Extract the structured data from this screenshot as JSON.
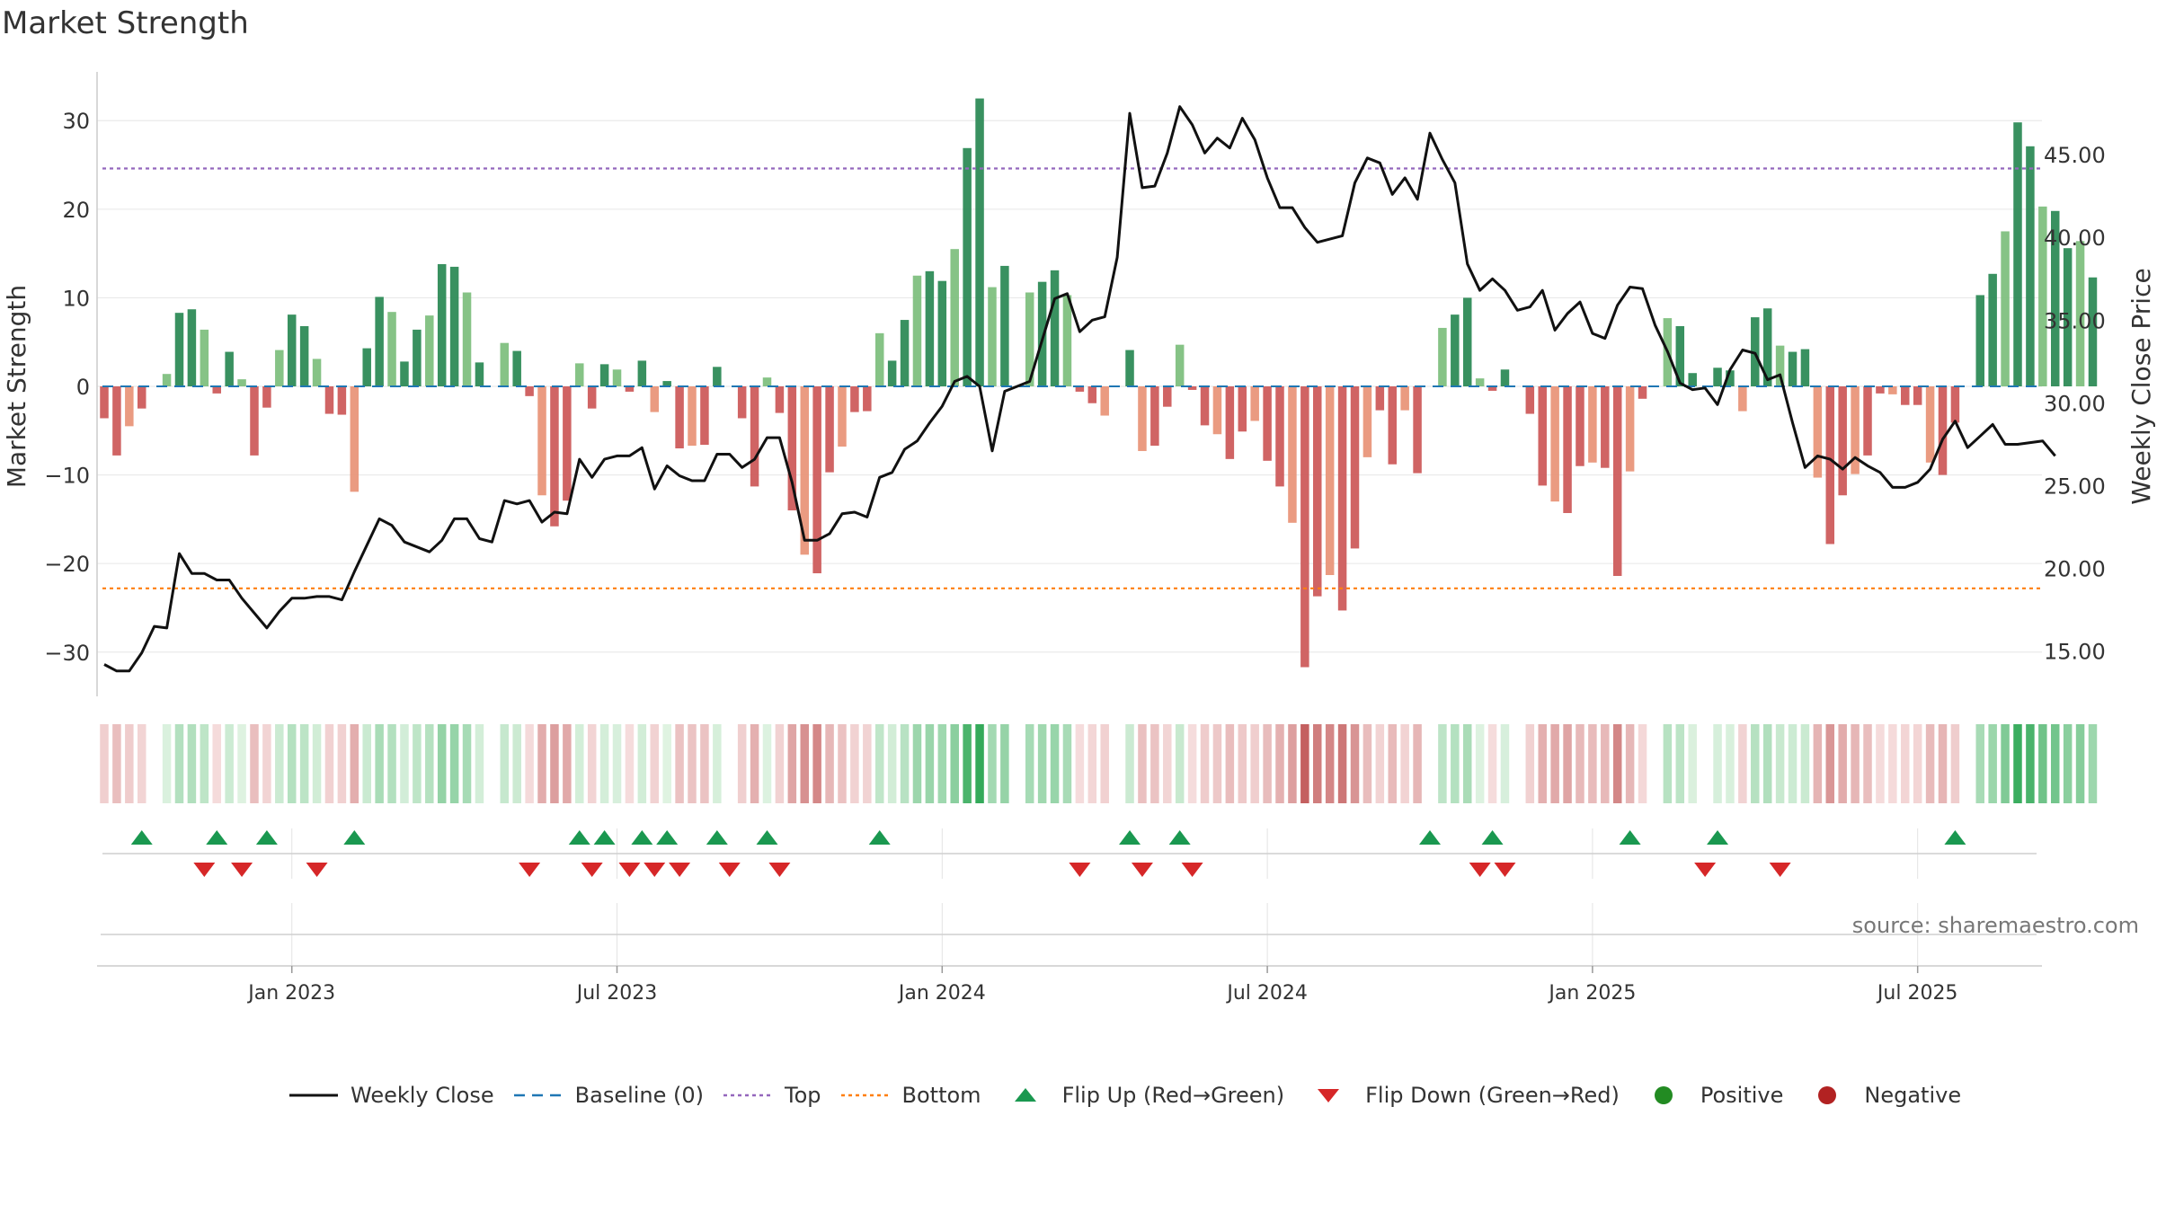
{
  "title": "Market Strength",
  "source": "source: sharemaestro.com",
  "colors": {
    "pos_strong": "#2e8b57",
    "pos_light": "#80c080",
    "neg_strong": "#cd5c5c",
    "neg_light": "#e9967a",
    "close_line": "#111111",
    "baseline": "#1f77b4",
    "top_line": "#9467bd",
    "bottom_line": "#ff7f0e",
    "flip_up": "#1a9850",
    "flip_down": "#d62728",
    "positive": "#228b22",
    "negative": "#b22222"
  },
  "legend": [
    {
      "kind": "line-solid",
      "label": "Weekly Close"
    },
    {
      "kind": "line-dash",
      "label": "Baseline (0)"
    },
    {
      "kind": "line-dot-top",
      "label": "Top"
    },
    {
      "kind": "line-dot-bottom",
      "label": "Bottom"
    },
    {
      "kind": "tri-up",
      "label": "Flip Up (Red→Green)"
    },
    {
      "kind": "tri-down",
      "label": "Flip Down (Green→Red)"
    },
    {
      "kind": "dot-pos",
      "label": "Positive"
    },
    {
      "kind": "dot-neg",
      "label": "Negative"
    }
  ],
  "chart_data": {
    "type": "bar",
    "ylabel": "Market Strength",
    "y2label": "Weekly Close Price",
    "ylim": [
      -35.5,
      35.5
    ],
    "y2lim": [
      12.0,
      50.0
    ],
    "yticks": [
      30,
      20,
      10,
      0,
      -10,
      -20,
      -30
    ],
    "ytick_labels": [
      "30",
      "20",
      "10",
      "0",
      "−10",
      "−20",
      "−30"
    ],
    "y2ticks": [
      45,
      40,
      35,
      30,
      25,
      20,
      15
    ],
    "y2tick_labels": [
      "45.00",
      "40.00",
      "35.00",
      "30.00",
      "25.00",
      "20.00",
      "15.00"
    ],
    "x_tick_labels": [
      "Jan 2023",
      "Jul 2023",
      "Jan 2024",
      "Jul 2024",
      "Jan 2025",
      "Jul 2025"
    ],
    "x_tick_index": [
      15,
      41,
      67,
      93,
      119,
      145
    ],
    "top_level": 24.6,
    "bottom_level": -22.8,
    "grid": true,
    "legend_position": "bottom",
    "strength": [
      -3.6,
      -7.8,
      -4.5,
      -2.5,
      0,
      1.4,
      8.3,
      8.7,
      6.4,
      -0.8,
      3.9,
      0.8,
      -7.8,
      -2.4,
      4.1,
      8.1,
      6.8,
      3.1,
      -3.1,
      -3.2,
      -11.9,
      4.3,
      10.1,
      8.4,
      2.8,
      6.4,
      8.0,
      13.8,
      13.5,
      10.6,
      2.7,
      0,
      4.9,
      4.0,
      -1.1,
      -12.3,
      -15.8,
      -12.9,
      2.6,
      -2.5,
      2.5,
      1.9,
      -0.6,
      2.9,
      -2.9,
      0.6,
      -7.0,
      -6.7,
      -6.6,
      2.2,
      0,
      -3.6,
      -11.3,
      1.0,
      -3.0,
      -14.0,
      -19.0,
      -21.1,
      -9.7,
      -6.8,
      -2.9,
      -2.8,
      6.0,
      2.9,
      7.5,
      12.5,
      13.0,
      11.9,
      15.5,
      26.9,
      32.5,
      11.2,
      13.6,
      0,
      10.6,
      11.8,
      13.1,
      10.3,
      -0.6,
      -1.9,
      -3.3,
      0,
      4.1,
      -7.3,
      -6.7,
      -2.3,
      4.7,
      -0.4,
      -4.4,
      -5.4,
      -8.2,
      -5.1,
      -3.9,
      -8.4,
      -11.3,
      -15.4,
      -31.7,
      -23.7,
      -21.3,
      -25.3,
      -18.3,
      -8.0,
      -2.7,
      -8.8,
      -2.7,
      -9.8,
      0,
      6.6,
      8.1,
      10.0,
      0.9,
      -0.5,
      1.9,
      0,
      -3.1,
      -11.2,
      -13.0,
      -14.3,
      -9.0,
      -8.6,
      -9.2,
      -21.4,
      -9.6,
      -1.4,
      0,
      7.7,
      6.8,
      1.5,
      0,
      2.1,
      1.8,
      -2.8,
      7.8,
      8.8,
      4.6,
      3.9,
      4.2,
      -10.3,
      -17.8,
      -12.3,
      -9.9,
      -7.8,
      -0.8,
      -0.9,
      -2.1,
      -2.1,
      -8.6,
      -10.0,
      -4.1,
      0,
      10.3,
      12.7,
      17.5,
      29.8,
      27.1,
      20.3,
      19.8,
      15.6,
      16.4,
      12.3
    ],
    "close": [
      14.2,
      13.8,
      13.8,
      14.9,
      16.5,
      16.4,
      20.9,
      19.7,
      19.7,
      19.3,
      19.3,
      18.2,
      17.3,
      16.4,
      17.4,
      18.2,
      18.2,
      18.3,
      18.3,
      18.1,
      19.8,
      21.4,
      23.0,
      22.6,
      21.6,
      21.3,
      21.0,
      21.7,
      23.0,
      23.0,
      21.8,
      21.6,
      24.1,
      23.9,
      24.1,
      22.8,
      23.4,
      23.3,
      26.6,
      25.5,
      26.6,
      26.8,
      26.8,
      27.3,
      24.8,
      26.2,
      25.6,
      25.3,
      25.3,
      26.9,
      26.9,
      26.1,
      26.6,
      27.9,
      27.9,
      25.2,
      21.7,
      21.7,
      22.1,
      23.3,
      23.4,
      23.1,
      25.5,
      25.8,
      27.2,
      27.7,
      28.8,
      29.8,
      31.3,
      31.6,
      31.0,
      27.1,
      30.7,
      31.0,
      31.3,
      33.8,
      36.3,
      36.6,
      34.3,
      35.0,
      35.2,
      38.8,
      47.5,
      43.0,
      43.1,
      45.1,
      47.9,
      46.8,
      45.1,
      46.0,
      45.4,
      47.2,
      45.9,
      43.6,
      41.8,
      41.8,
      40.6,
      39.7,
      39.9,
      40.1,
      43.3,
      44.8,
      44.5,
      42.6,
      43.6,
      42.3,
      46.3,
      44.7,
      43.3,
      38.4,
      36.8,
      37.5,
      36.8,
      35.6,
      35.8,
      36.8,
      34.4,
      35.4,
      36.1,
      34.2,
      33.9,
      35.9,
      37.0,
      36.9,
      34.7,
      33.1,
      31.2,
      30.8,
      30.9,
      29.9,
      32.0,
      33.2,
      33.0,
      31.4,
      31.7,
      28.8,
      26.1,
      26.8,
      26.6,
      26.0,
      26.7,
      26.2,
      25.8,
      24.9,
      24.9,
      25.2,
      26.0,
      27.8,
      28.9,
      27.3,
      28.0,
      28.7,
      27.5,
      27.5,
      27.6,
      27.7,
      26.8
    ],
    "flip_up_index": [
      3,
      9,
      13,
      20,
      38,
      40,
      43,
      45,
      49,
      53,
      62,
      82,
      86,
      106,
      111,
      122,
      129,
      148
    ],
    "flip_down_index": [
      8,
      11,
      17,
      34,
      39,
      42,
      44,
      46,
      50,
      54,
      78,
      83,
      87,
      110,
      112,
      128,
      134
    ]
  }
}
